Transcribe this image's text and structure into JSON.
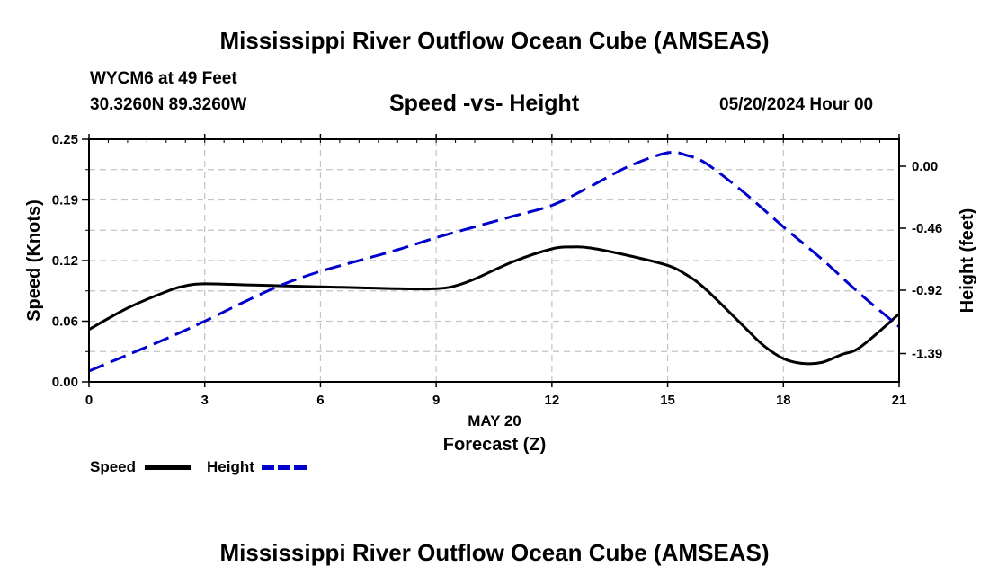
{
  "page_title": "Mississippi River Outflow Ocean Cube (AMSEAS)",
  "station": {
    "name_line": "WYCM6 at 49 Feet",
    "coords_line": "30.3260N  89.3260W"
  },
  "datetime": "05/20/2024 Hour 00",
  "footer_title": "Mississippi River Outflow Ocean Cube (AMSEAS)",
  "chart_data": {
    "type": "line",
    "title": "Speed -vs- Height",
    "xlabel_date": "MAY 20",
    "xlabel": "Forecast (Z)",
    "ylabel": "Speed (Knots)",
    "y2label": "Height (feet)",
    "xlim": [
      0,
      21
    ],
    "ylim": [
      0,
      0.25
    ],
    "y2lim": [
      -1.6,
      0.2
    ],
    "x_ticks": [
      0,
      3,
      6,
      9,
      12,
      15,
      18,
      21
    ],
    "x_tick_labels": [
      "0",
      "3",
      "6",
      "9",
      "12",
      "15",
      "18",
      "21"
    ],
    "y_ticks": [
      0,
      0.0625,
      0.125,
      0.1875,
      0.25
    ],
    "y_tick_labels": [
      "0.00",
      "0.06",
      "0.12",
      "0.19",
      "0.25"
    ],
    "y2_ticks": [
      0,
      -0.46,
      -0.92,
      -1.39
    ],
    "y2_tick_labels": [
      "0.00",
      "-0.46",
      "-0.92",
      "-1.39"
    ],
    "grid": true,
    "legend": [
      {
        "name": "Speed",
        "color": "#000000",
        "dash": "solid"
      },
      {
        "name": "Height",
        "color": "#0000cc",
        "dash": "dashed"
      }
    ],
    "series": [
      {
        "name": "Speed",
        "axis": "left",
        "color": "#000000",
        "x": [
          0,
          1,
          2,
          2.5,
          3,
          4,
          5,
          6,
          7,
          8,
          9,
          9.5,
          10,
          11,
          12,
          12.5,
          13,
          14,
          15,
          15.5,
          16,
          17,
          17.5,
          18,
          18.5,
          19,
          19.5,
          20,
          21
        ],
        "y": [
          0.054,
          0.076,
          0.093,
          0.099,
          0.101,
          0.1,
          0.099,
          0.098,
          0.097,
          0.096,
          0.096,
          0.099,
          0.106,
          0.124,
          0.137,
          0.139,
          0.138,
          0.13,
          0.12,
          0.11,
          0.095,
          0.056,
          0.037,
          0.024,
          0.019,
          0.02,
          0.028,
          0.036,
          0.07
        ]
      },
      {
        "name": "Height",
        "axis": "right",
        "color": "#0000cc",
        "x": [
          0,
          1,
          2,
          3,
          4,
          5,
          6,
          7,
          8,
          9,
          10,
          11,
          12,
          13,
          14,
          15,
          15.5,
          16,
          17,
          18,
          19,
          20,
          21
        ],
        "y": [
          -1.52,
          -1.4,
          -1.28,
          -1.15,
          -1.01,
          -0.88,
          -0.78,
          -0.7,
          -0.62,
          -0.53,
          -0.45,
          -0.37,
          -0.29,
          -0.15,
          0.0,
          0.1,
          0.08,
          0.02,
          -0.2,
          -0.45,
          -0.69,
          -0.95,
          -1.19
        ]
      }
    ]
  }
}
